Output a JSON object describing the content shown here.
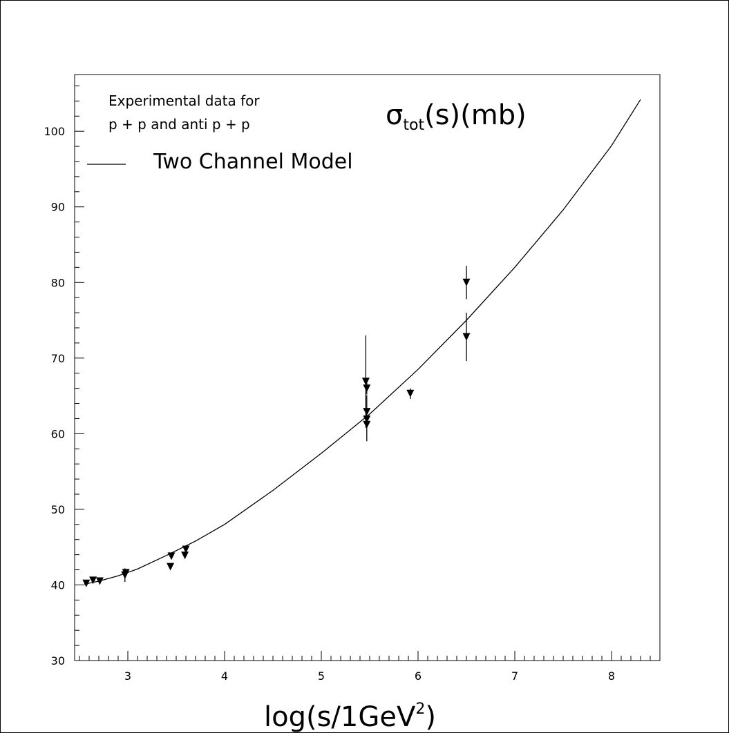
{
  "chart_data": {
    "type": "scatter",
    "title": "",
    "xlabel": "log(s/1GeV",
    "xlabel_sup": "2",
    "xlabel_close": ")",
    "ylabel_sigma": "σ",
    "ylabel_sub": "tot",
    "ylabel_rest": "(s)(mb)",
    "xlim": [
      2.45,
      8.5
    ],
    "ylim": [
      30,
      107.5
    ],
    "x_ticks": [
      3,
      4,
      5,
      6,
      7,
      8
    ],
    "y_ticks": [
      30,
      40,
      50,
      60,
      70,
      80,
      90,
      100
    ],
    "grid": false,
    "legend": {
      "placement": "top-left",
      "data_line1": "Experimental data for",
      "data_line2": "p + p and  anti p + p",
      "model_label": "Two Channel Model"
    },
    "series": [
      {
        "name": "Experimental data for p + p and anti p + p",
        "kind": "points",
        "marker": "down-triangle",
        "points": [
          {
            "x": 2.57,
            "y": 40.2,
            "err": 0.3
          },
          {
            "x": 2.64,
            "y": 40.6,
            "err": 0.3
          },
          {
            "x": 2.71,
            "y": 40.5,
            "err": 0.3
          },
          {
            "x": 2.97,
            "y": 41.3,
            "err": 0.9
          },
          {
            "x": 2.98,
            "y": 41.6,
            "err": 0.4
          },
          {
            "x": 3.44,
            "y": 42.4,
            "err": 0.3
          },
          {
            "x": 3.45,
            "y": 43.8,
            "err": 0.3
          },
          {
            "x": 3.59,
            "y": 43.9,
            "err": 0.3
          },
          {
            "x": 3.6,
            "y": 44.7,
            "err": 0.3
          },
          {
            "x": 5.46,
            "y": 66.9,
            "err": 6.1
          },
          {
            "x": 5.47,
            "y": 66.0,
            "err": 0.8
          },
          {
            "x": 5.47,
            "y": 62.9,
            "err": 2.2
          },
          {
            "x": 5.47,
            "y": 61.9,
            "err": 1.0
          },
          {
            "x": 5.47,
            "y": 61.2,
            "err": 2.2
          },
          {
            "x": 5.92,
            "y": 65.3,
            "err": 0.7
          },
          {
            "x": 6.5,
            "y": 80.0,
            "err": 2.2
          },
          {
            "x": 6.5,
            "y": 72.8,
            "err": 3.2
          }
        ]
      },
      {
        "name": "Two Channel Model",
        "kind": "line",
        "x": [
          2.55,
          2.7,
          2.9,
          3.1,
          3.4,
          3.7,
          4.0,
          4.5,
          5.0,
          5.5,
          6.0,
          6.5,
          7.0,
          7.5,
          8.0,
          8.3
        ],
        "y": [
          40.1,
          40.5,
          41.2,
          42.1,
          43.9,
          45.8,
          48.0,
          52.5,
          57.4,
          62.6,
          68.5,
          75.0,
          82.0,
          89.6,
          98.1,
          104.2
        ]
      }
    ]
  }
}
